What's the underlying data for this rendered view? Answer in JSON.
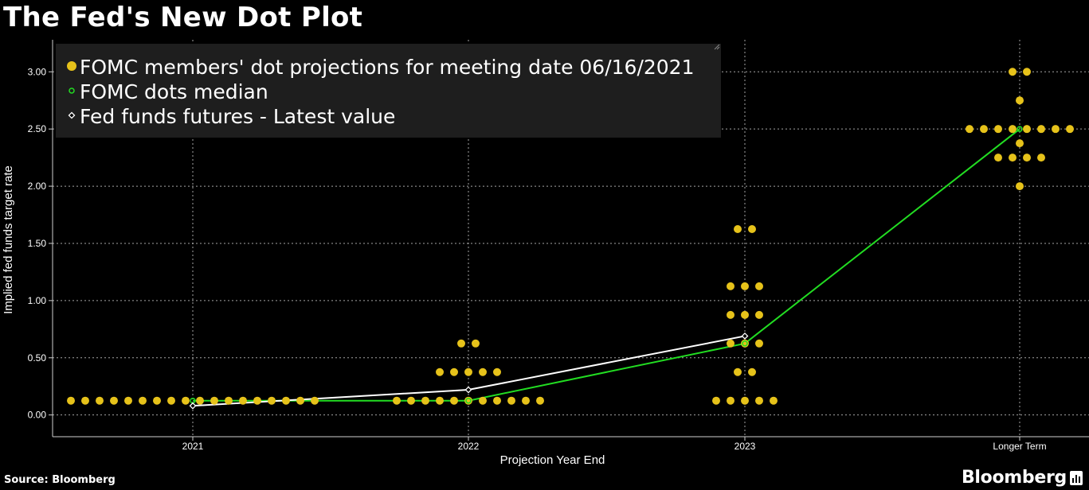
{
  "title": "The Fed's New Dot Plot",
  "source": "Source: Bloomberg",
  "brand": "Bloomberg",
  "chart_data": {
    "type": "scatter",
    "xlabel": "Projection Year End",
    "ylabel": "Implied fed funds target rate",
    "categories": [
      "2021",
      "2022",
      "2023",
      "Longer Term"
    ],
    "ylim": [
      -0.19,
      3.28
    ],
    "yticks": [
      0.0,
      0.5,
      1.0,
      1.5,
      2.0,
      2.5,
      3.0
    ],
    "ytick_labels": [
      "0.00",
      "0.50",
      "1.00",
      "1.50",
      "2.00",
      "2.50",
      "3.00"
    ],
    "grid": true,
    "legend_position": "top-left",
    "legend": [
      "FOMC members' dot projections for meeting date 06/16/2021",
      "FOMC dots median",
      "Fed funds futures - Latest value"
    ],
    "colors": {
      "dots": "#e6c21a",
      "median": "#22dd22",
      "futures": "#ffffff",
      "grid": "#cfcfcf"
    },
    "series": [
      {
        "name": "FOMC members' dot projections for meeting date 06/16/2021",
        "kind": "dots",
        "groups": [
          {
            "category": "2021",
            "rows": [
              {
                "value": 0.125,
                "count": 18
              }
            ]
          },
          {
            "category": "2022",
            "rows": [
              {
                "value": 0.125,
                "count": 11
              },
              {
                "value": 0.375,
                "count": 5
              },
              {
                "value": 0.625,
                "count": 2
              }
            ]
          },
          {
            "category": "2023",
            "rows": [
              {
                "value": 0.125,
                "count": 5
              },
              {
                "value": 0.375,
                "count": 2
              },
              {
                "value": 0.625,
                "count": 3
              },
              {
                "value": 0.875,
                "count": 3
              },
              {
                "value": 1.125,
                "count": 3
              },
              {
                "value": 1.625,
                "count": 2
              }
            ]
          },
          {
            "category": "Longer Term",
            "rows": [
              {
                "value": 2.0,
                "count": 1
              },
              {
                "value": 2.25,
                "count": 4
              },
              {
                "value": 2.375,
                "count": 1
              },
              {
                "value": 2.5,
                "count": 8
              },
              {
                "value": 2.75,
                "count": 1
              },
              {
                "value": 3.0,
                "count": 2
              }
            ]
          }
        ]
      },
      {
        "name": "FOMC dots median",
        "kind": "line",
        "points": [
          {
            "category": "2021",
            "value": 0.125
          },
          {
            "category": "2022",
            "value": 0.125
          },
          {
            "category": "2023",
            "value": 0.625
          },
          {
            "category": "Longer Term",
            "value": 2.5
          }
        ]
      },
      {
        "name": "Fed funds futures - Latest value",
        "kind": "line",
        "points": [
          {
            "category": "2021",
            "value": 0.08
          },
          {
            "category": "2022",
            "value": 0.22
          },
          {
            "category": "2023",
            "value": 0.69
          }
        ]
      }
    ]
  }
}
